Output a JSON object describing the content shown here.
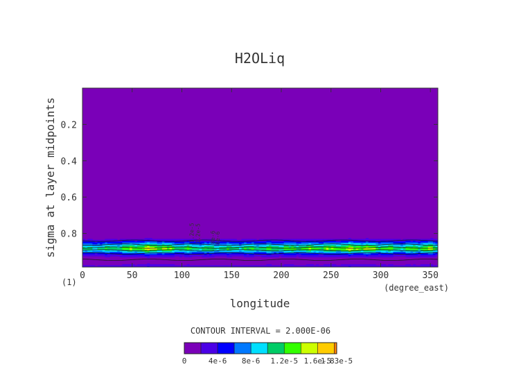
{
  "chart_data": {
    "type": "heatmap",
    "title": "H2OLiq",
    "xlabel": "longitude",
    "ylabel": "sigma at layer midpoints",
    "x_units": "(degree_east)",
    "y_index_label": "(1)",
    "xlim": [
      0,
      357.5
    ],
    "ylim": [
      0.0,
      0.985
    ],
    "y_inverted": true,
    "x_ticks": [
      "0",
      "50",
      "100",
      "150",
      "200",
      "250",
      "300",
      "350"
    ],
    "x_tick_values": [
      0,
      50,
      100,
      150,
      200,
      250,
      300,
      350
    ],
    "y_ticks": [
      "0.2",
      "0.4",
      "0.6",
      "0.8"
    ],
    "y_tick_values": [
      0.2,
      0.4,
      0.6,
      0.8
    ],
    "contour_interval_text": "CONTOUR INTERVAL = 2.000E-06",
    "colorbar": {
      "levels": [
        0,
        2e-06,
        4e-06,
        6e-06,
        8e-06,
        1e-05,
        1.2e-05,
        1.4e-05,
        1.6e-05,
        1.8e-05,
        1.83e-05
      ],
      "tick_labels": [
        "0",
        "4e-6",
        "8e-6",
        "1.2e-5",
        "1.6e-5",
        "1.83e-5"
      ],
      "tick_values": [
        0,
        4e-06,
        8e-06,
        1.2e-05,
        1.6e-05,
        1.83e-05
      ],
      "colors": [
        "#7a00b8",
        "#4b00e6",
        "#0000ff",
        "#0079ff",
        "#00dfff",
        "#00cc66",
        "#33ff00",
        "#ccff00",
        "#ffcc00",
        "#ff7f00",
        "#ff0000"
      ]
    },
    "profile_sigma": [
      0.0,
      0.8,
      0.82,
      0.84,
      0.86,
      0.875,
      0.885,
      0.895,
      0.91,
      0.93,
      0.95,
      0.97,
      0.985
    ],
    "profile_value": [
      0.0,
      0.0,
      5e-07,
      3e-06,
      7e-06,
      1e-05,
      1.15e-05,
      9e-06,
      5e-06,
      1.5e-06,
      3e-07,
      1.5e-06,
      3e-06
    ],
    "longitude_modulation": {
      "lon": [
        0,
        30,
        70,
        100,
        150,
        200,
        250,
        280,
        320,
        350,
        357.5
      ],
      "factor": [
        0.92,
        1.0,
        1.4,
        1.05,
        1.0,
        1.1,
        1.2,
        1.35,
        1.0,
        1.3,
        1.0
      ]
    },
    "contour_labels": [
      "1.2e-5",
      "1.2e-5",
      "8e-6",
      "8e-6"
    ],
    "grid": false,
    "legend": "bottom colorbar"
  }
}
